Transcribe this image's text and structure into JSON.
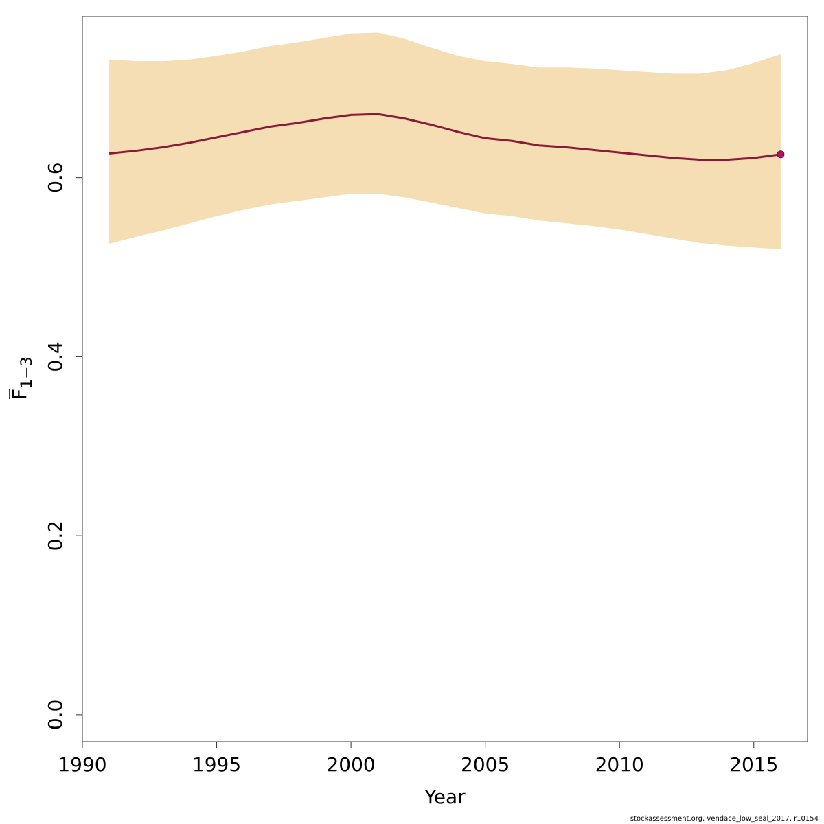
{
  "chart_data": {
    "type": "line",
    "title": "",
    "xlabel": "Year",
    "ylabel_main": "F",
    "ylabel_sub": "1−3",
    "xlim": [
      1990,
      2017
    ],
    "ylim": [
      -0.03,
      0.78
    ],
    "x_ticks": [
      1990,
      1995,
      2000,
      2005,
      2010,
      2015
    ],
    "y_ticks": [
      0.0,
      0.2,
      0.4,
      0.6
    ],
    "y_tick_labels": [
      "0.0",
      "0.2",
      "0.4",
      "0.6"
    ],
    "grid": false,
    "band_color": "#f5deb3",
    "line_color": "#8b1a3a",
    "point_color": "#b0126e",
    "x": [
      1991,
      1992,
      1993,
      1994,
      1995,
      1996,
      1997,
      1998,
      1999,
      2000,
      2001,
      2002,
      2003,
      2004,
      2005,
      2006,
      2007,
      2008,
      2009,
      2010,
      2011,
      2012,
      2013,
      2014,
      2015,
      2016
    ],
    "series": [
      {
        "values": [
          0.627,
          0.63,
          0.634,
          0.639,
          0.645,
          0.651,
          0.657,
          0.661,
          0.666,
          0.67,
          0.671,
          0.666,
          0.659,
          0.651,
          0.644,
          0.641,
          0.636,
          0.634,
          0.631,
          0.628,
          0.625,
          0.622,
          0.62,
          0.62,
          0.622,
          0.626
        ]
      }
    ],
    "band_lower": [
      0.526,
      0.534,
      0.541,
      0.549,
      0.557,
      0.564,
      0.57,
      0.574,
      0.578,
      0.582,
      0.582,
      0.578,
      0.572,
      0.566,
      0.56,
      0.557,
      0.552,
      0.549,
      0.546,
      0.542,
      0.537,
      0.532,
      0.527,
      0.524,
      0.522,
      0.52
    ],
    "band_upper": [
      0.732,
      0.73,
      0.73,
      0.732,
      0.736,
      0.741,
      0.747,
      0.751,
      0.756,
      0.761,
      0.762,
      0.755,
      0.745,
      0.736,
      0.73,
      0.727,
      0.723,
      0.723,
      0.722,
      0.72,
      0.718,
      0.716,
      0.716,
      0.72,
      0.728,
      0.738
    ],
    "highlight_point": {
      "x": 2016,
      "y": 0.626
    }
  },
  "footer": {
    "credit": "stockassessment.org, vendace_low_seal_2017, r10154"
  }
}
